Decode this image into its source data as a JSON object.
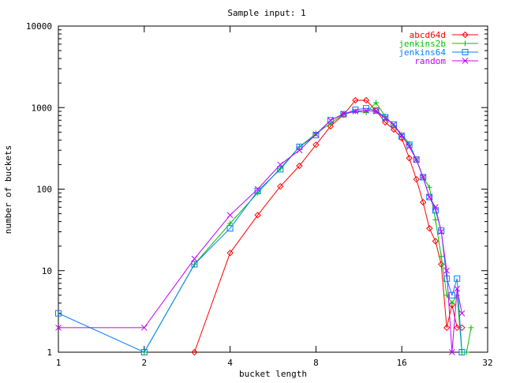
{
  "chart_data": {
    "type": "line",
    "title": "Sample input: 1",
    "xlabel": "bucket length",
    "ylabel": "number of buckets",
    "xscale": "log2",
    "yscale": "log10",
    "xlim": [
      1,
      32
    ],
    "ylim": [
      1,
      10000
    ],
    "xticks": [
      1,
      2,
      4,
      8,
      16,
      32
    ],
    "yticks": [
      1,
      10,
      100,
      1000,
      10000
    ],
    "legend_position": "top-right",
    "x": [
      1,
      2,
      3,
      4,
      5,
      6,
      7,
      8,
      9,
      10,
      11,
      12,
      13,
      14,
      15,
      16,
      17,
      18,
      19,
      20,
      21,
      22,
      23,
      24,
      25,
      26,
      27,
      28
    ],
    "series": [
      {
        "name": "abcd64d",
        "color": "#ff0000",
        "marker": "diamond",
        "values": [
          null,
          null,
          1,
          16.5,
          48,
          108,
          193,
          350,
          590,
          820,
          1230,
          1230,
          920,
          660,
          540,
          420,
          240,
          132,
          69,
          33,
          23,
          12,
          2,
          3.8,
          2,
          2,
          null,
          null
        ]
      },
      {
        "name": "jenkins2b",
        "color": "#00c000",
        "marker": "plus",
        "values": [
          null,
          1,
          12,
          38,
          90,
          180,
          330,
          480,
          640,
          830,
          900,
          870,
          1150,
          780,
          600,
          470,
          360,
          230,
          140,
          105,
          42,
          15,
          5,
          4,
          5,
          1,
          1,
          2
        ]
      },
      {
        "name": "jenkins64",
        "color": "#0080ff",
        "marker": "square",
        "values": [
          3,
          1,
          12,
          33,
          95,
          175,
          330,
          460,
          700,
          830,
          940,
          980,
          920,
          760,
          620,
          440,
          350,
          230,
          140,
          80,
          55,
          31,
          8,
          5,
          8,
          1,
          null,
          null
        ]
      },
      {
        "name": "random",
        "color": "#c000ff",
        "marker": "cross",
        "values": [
          2,
          2,
          14,
          48,
          100,
          200,
          300,
          470,
          700,
          840,
          900,
          920,
          900,
          740,
          620,
          460,
          330,
          230,
          140,
          80,
          60,
          30,
          10,
          1,
          6,
          3,
          null,
          null
        ]
      }
    ]
  }
}
